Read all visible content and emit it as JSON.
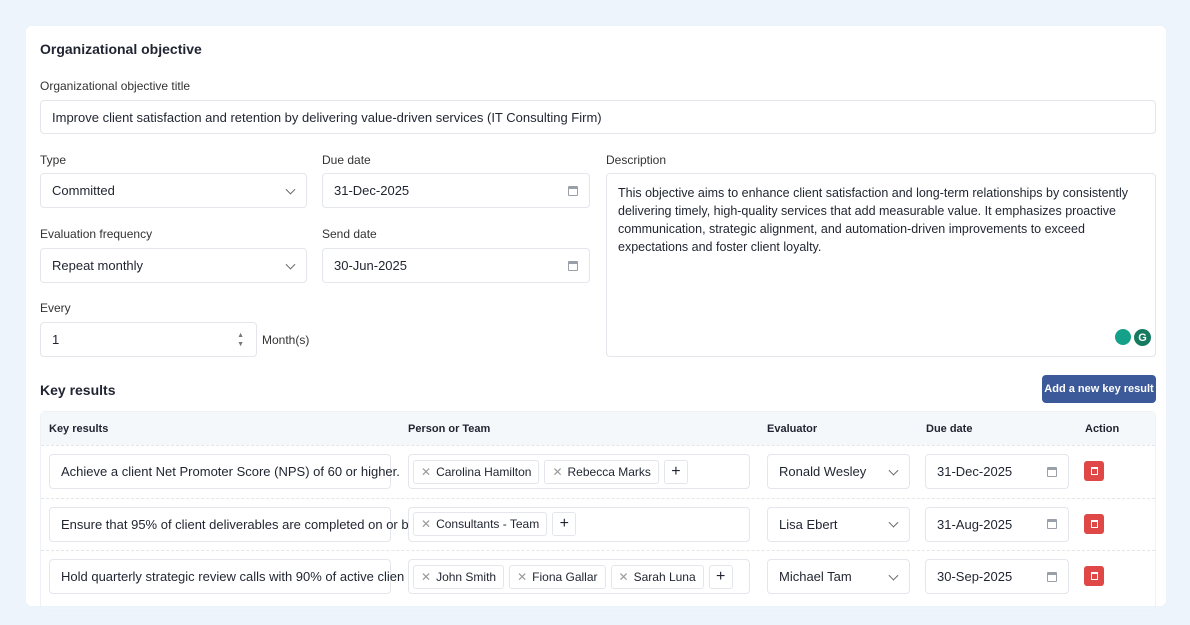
{
  "section_title": "Organizational objective",
  "title_label": "Organizational objective title",
  "title_value": "Improve client satisfaction and retention by delivering value-driven services (IT Consulting Firm)",
  "type": {
    "label": "Type",
    "value": "Committed"
  },
  "due_date": {
    "label": "Due date",
    "value": "31-Dec-2025"
  },
  "description": {
    "label": "Description",
    "value": "This objective aims to enhance client satisfaction and long-term relationships by consistently delivering timely, high-quality services that add measurable value. It emphasizes proactive communication, strategic alignment, and automation-driven improvements to exceed expectations and foster client loyalty."
  },
  "eval_freq": {
    "label": "Evaluation frequency",
    "value": "Repeat monthly"
  },
  "send_date": {
    "label": "Send date",
    "value": "30-Jun-2025"
  },
  "every": {
    "label": "Every",
    "value": "1",
    "unit": "Month(s)"
  },
  "key_results": {
    "title": "Key results",
    "add_button": "Add a new key result",
    "columns": [
      "Key results",
      "Person or Team",
      "Evaluator",
      "Due date",
      "Action"
    ],
    "rows": [
      {
        "text": "Achieve a client Net Promoter Score (NPS) of 60 or higher.",
        "people": [
          "Carolina Hamilton",
          "Rebecca Marks"
        ],
        "evaluator": "Ronald Wesley",
        "due": "31-Dec-2025"
      },
      {
        "text": "Ensure that 95% of client deliverables are completed on or b",
        "people": [
          "Consultants - Team"
        ],
        "evaluator": "Lisa Ebert",
        "due": "31-Aug-2025"
      },
      {
        "text": "Hold quarterly strategic review calls with 90% of active clien",
        "people": [
          "John Smith",
          "Fiona Gallar",
          "Sarah Luna"
        ],
        "evaluator": "Michael Tam",
        "due": "30-Sep-2025"
      }
    ]
  },
  "colors": {
    "accent": "#3c5a99",
    "delete": "#e04848",
    "background": "#eef4fc"
  }
}
